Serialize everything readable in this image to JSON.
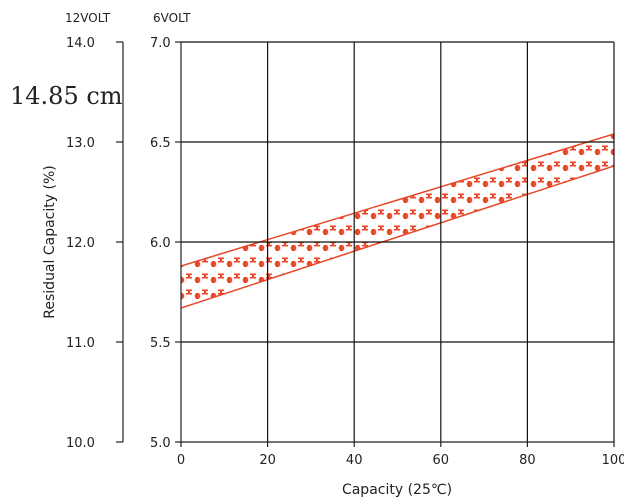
{
  "chart_data": {
    "type": "area",
    "header_left": "12VOLT",
    "header_right": "6VOLT",
    "annotation": "14.85 cm",
    "xlabel": "Capacity (25℃)",
    "ylabel": "Residual Capacity (%)",
    "xlim": [
      0,
      100
    ],
    "ylim_6v": [
      5.0,
      7.0
    ],
    "ylim_12v": [
      10.0,
      14.0
    ],
    "x_ticks": [
      "0",
      "20",
      "40",
      "60",
      "80",
      "100"
    ],
    "y_ticks_6v": [
      "5.0",
      "5.5",
      "6.0",
      "6.5",
      "7.0"
    ],
    "y_ticks_12v": [
      "10.0",
      "11.0",
      "12.0",
      "13.0",
      "14.0"
    ],
    "grid": true,
    "band": {
      "x": [
        0,
        100
      ],
      "upper_6v": [
        5.88,
        6.54
      ],
      "lower_6v": [
        5.67,
        6.38
      ]
    },
    "colors": {
      "band": "#e8472a",
      "grid": "#111111",
      "axis": "#222222"
    }
  }
}
